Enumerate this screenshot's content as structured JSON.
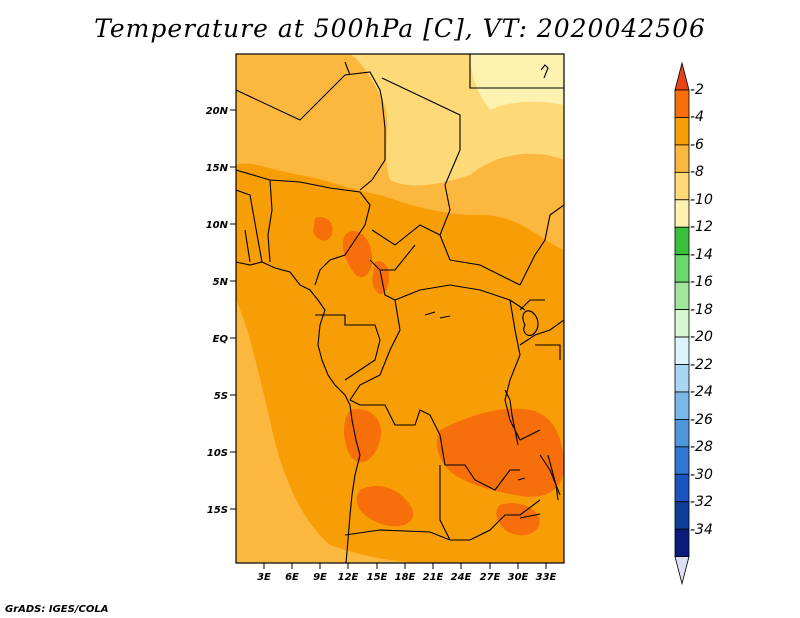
{
  "title": "Temperature at 500hPa [C], VT: 2020042506",
  "credit": "GrADS: IGES/COLA",
  "map": {
    "lat_labels": [
      "20N",
      "15N",
      "10N",
      "5N",
      "EQ",
      "5S",
      "10S",
      "15S"
    ],
    "lat_values": [
      20,
      15,
      10,
      5,
      0,
      -5,
      -10,
      -15
    ],
    "lon_labels": [
      "3E",
      "6E",
      "9E",
      "12E",
      "15E",
      "18E",
      "21E",
      "24E",
      "27E",
      "30E",
      "33E"
    ],
    "lon_values": [
      3,
      6,
      9,
      12,
      15,
      18,
      21,
      24,
      27,
      30,
      33
    ]
  },
  "colorbar": {
    "labels": [
      "-2",
      "-4",
      "-6",
      "-8",
      "-10",
      "-12",
      "-14",
      "-16",
      "-18",
      "-20",
      "-22",
      "-24",
      "-26",
      "-28",
      "-30",
      "-32",
      "-34"
    ],
    "colors": [
      "#e8421c",
      "#f66f0a",
      "#f79d05",
      "#fcb73f",
      "#fdd978",
      "#fdf2b0",
      "#39c13b",
      "#6ad66c",
      "#a2e59c",
      "#d8f6d0",
      "#dff3fb",
      "#a9d6f3",
      "#7ab8ea",
      "#4e97dd",
      "#2f77d2",
      "#1a55bf",
      "#0f3d9a",
      "#0a1c7a",
      "#dde0f5"
    ]
  },
  "palette": {
    "warm": "#f66f0a",
    "orange": "#f79d05",
    "light_orange": "#fcb73f",
    "yellow": "#fdd978",
    "pale_yellow": "#fdf2b0",
    "border": "#000000"
  }
}
